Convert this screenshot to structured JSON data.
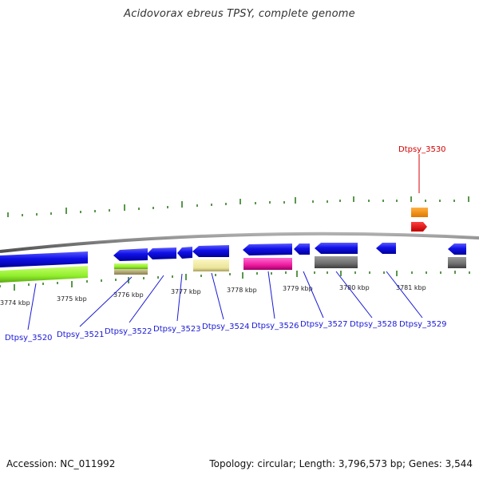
{
  "title": "Acidovorax ebreus TPSY, complete genome",
  "footer": {
    "accession": "Accession: NC_011992",
    "summary": "Topology: circular; Length: 3,796,573 bp; Genes: 3,544"
  },
  "colors": {
    "backbone": "#8c8c8c",
    "tick": "#2f7d1f",
    "label_blue": "#1a1ad6",
    "label_red": "#d40000"
  },
  "scale_labels": [
    "3774 kbp",
    "3775 kbp",
    "3776 kbp",
    "3777 kbp",
    "3778 kbp",
    "3779 kbp",
    "3780 kbp",
    "3781 kbp"
  ],
  "gene_labels": [
    {
      "id": "Dtpsy_3520",
      "color": "blue"
    },
    {
      "id": "Dtpsy_3521",
      "color": "blue"
    },
    {
      "id": "Dtpsy_3522",
      "color": "blue"
    },
    {
      "id": "Dtpsy_3523",
      "color": "blue"
    },
    {
      "id": "Dtpsy_3524",
      "color": "blue"
    },
    {
      "id": "Dtpsy_3526",
      "color": "blue"
    },
    {
      "id": "Dtpsy_3527",
      "color": "blue"
    },
    {
      "id": "Dtpsy_3528",
      "color": "blue"
    },
    {
      "id": "Dtpsy_3529",
      "color": "blue"
    },
    {
      "id": "Dtpsy_3530",
      "color": "red"
    }
  ]
}
